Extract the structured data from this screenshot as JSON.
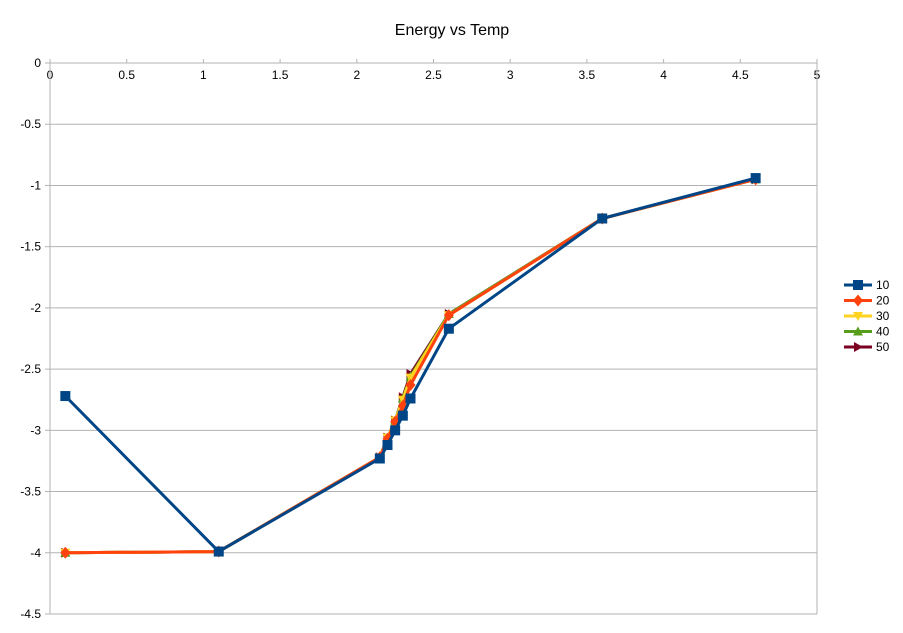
{
  "chart_data": {
    "type": "line",
    "title": "Energy vs Temp",
    "xlabel": "",
    "ylabel": "",
    "xlim": [
      0,
      5
    ],
    "ylim": [
      -4.5,
      0
    ],
    "xticks": [
      "0",
      "0.5",
      "1",
      "1.5",
      "2",
      "2.5",
      "3",
      "3.5",
      "4",
      "4.5",
      "5"
    ],
    "yticks": [
      "0",
      "-0.5",
      "-1",
      "-1.5",
      "-2",
      "-2.5",
      "-3",
      "-3.5",
      "-4",
      "-4.5"
    ],
    "grid": true,
    "legend": "right",
    "series": [
      {
        "name": "50",
        "color": "#7b0022",
        "marker": "triangle-right",
        "points": [
          [
            0.1,
            -4.0
          ],
          [
            1.1,
            -3.99
          ],
          [
            2.15,
            -3.22
          ],
          [
            2.2,
            -3.06
          ],
          [
            2.25,
            -2.92
          ],
          [
            2.3,
            -2.73
          ],
          [
            2.35,
            -2.54
          ],
          [
            2.6,
            -2.05
          ],
          [
            3.6,
            -1.27
          ],
          [
            4.6,
            -0.95
          ]
        ]
      },
      {
        "name": "40",
        "color": "#579d1c",
        "marker": "triangle-up",
        "points": [
          [
            0.1,
            -4.0
          ],
          [
            1.1,
            -3.99
          ],
          [
            2.15,
            -3.22
          ],
          [
            2.2,
            -3.06
          ],
          [
            2.25,
            -2.92
          ],
          [
            2.3,
            -2.74
          ],
          [
            2.35,
            -2.56
          ],
          [
            2.6,
            -2.05
          ],
          [
            3.6,
            -1.27
          ],
          [
            4.6,
            -0.95
          ]
        ]
      },
      {
        "name": "30",
        "color": "#ffd320",
        "marker": "triangle-down",
        "points": [
          [
            0.1,
            -4.0
          ],
          [
            1.1,
            -3.99
          ],
          [
            2.15,
            -3.22
          ],
          [
            2.2,
            -3.06
          ],
          [
            2.25,
            -2.92
          ],
          [
            2.3,
            -2.75
          ],
          [
            2.35,
            -2.57
          ],
          [
            2.6,
            -2.06
          ],
          [
            3.6,
            -1.27
          ],
          [
            4.6,
            -0.95
          ]
        ]
      },
      {
        "name": "20",
        "color": "#ff420e",
        "marker": "diamond",
        "points": [
          [
            0.1,
            -4.0
          ],
          [
            1.1,
            -3.99
          ],
          [
            2.15,
            -3.22
          ],
          [
            2.2,
            -3.07
          ],
          [
            2.25,
            -2.93
          ],
          [
            2.3,
            -2.8
          ],
          [
            2.35,
            -2.63
          ],
          [
            2.6,
            -2.06
          ],
          [
            3.6,
            -1.27
          ],
          [
            4.6,
            -0.95
          ]
        ]
      },
      {
        "name": "10",
        "color": "#004586",
        "marker": "square",
        "points": [
          [
            0.1,
            -2.72
          ],
          [
            1.1,
            -3.99
          ],
          [
            2.15,
            -3.23
          ],
          [
            2.2,
            -3.12
          ],
          [
            2.25,
            -3.0
          ],
          [
            2.3,
            -2.88
          ],
          [
            2.35,
            -2.74
          ],
          [
            2.6,
            -2.17
          ],
          [
            3.6,
            -1.27
          ],
          [
            4.6,
            -0.94
          ]
        ]
      }
    ]
  }
}
